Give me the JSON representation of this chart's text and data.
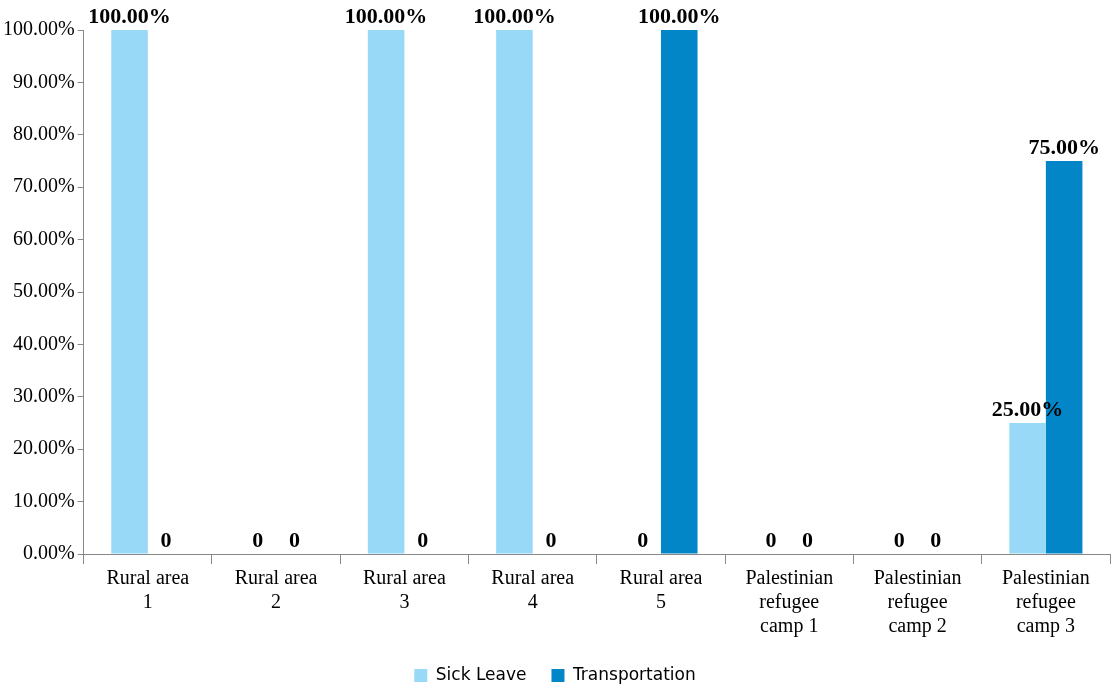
{
  "chart_data": {
    "type": "bar",
    "categories": [
      "Rural area 1",
      "Rural area 2",
      "Rural area 3",
      "Rural area 4",
      "Rural area 5",
      "Palestinian refugee camp 1",
      "Palestinian refugee camp 2",
      "Palestinian refugee camp 3"
    ],
    "series": [
      {
        "name": "Sick Leave",
        "color": "#97d9f7",
        "values": [
          100,
          0,
          100,
          100,
          0,
          0,
          0,
          25
        ],
        "value_labels": [
          "100.00%",
          "0",
          "100.00%",
          "100.00%",
          "0",
          "0",
          "0",
          "25.00%"
        ]
      },
      {
        "name": "Transportation",
        "color": "#0286c8",
        "values": [
          0,
          0,
          0,
          0,
          100,
          0,
          0,
          75
        ],
        "value_labels": [
          "0",
          "0",
          "0",
          "0",
          "100.00%",
          "0",
          "0",
          "75.00%"
        ]
      }
    ],
    "ylim": [
      0,
      100
    ],
    "yticks": [
      {
        "value": 0,
        "label": "0.00%"
      },
      {
        "value": 10,
        "label": "10.00%"
      },
      {
        "value": 20,
        "label": "20.00%"
      },
      {
        "value": 30,
        "label": "30.00%"
      },
      {
        "value": 40,
        "label": "40.00%"
      },
      {
        "value": 50,
        "label": "50.00%"
      },
      {
        "value": 60,
        "label": "60.00%"
      },
      {
        "value": 70,
        "label": "70.00%"
      },
      {
        "value": 80,
        "label": "80.00%"
      },
      {
        "value": 90,
        "label": "90.00%"
      },
      {
        "value": 100,
        "label": "100.00%"
      }
    ],
    "grid": false,
    "legend": "bottom"
  }
}
